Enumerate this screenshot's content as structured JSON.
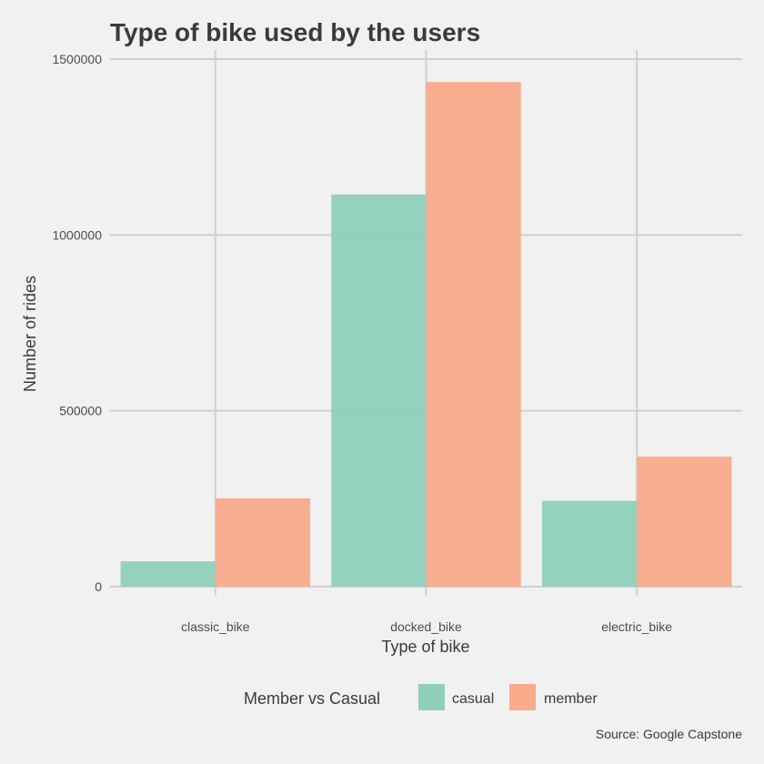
{
  "chart_data": {
    "type": "bar",
    "title": "Type of bike used by the users",
    "xlabel": "Type of bike",
    "ylabel": "Number of rides",
    "categories": [
      "classic_bike",
      "docked_bike",
      "electric_bike"
    ],
    "series": [
      {
        "name": "casual",
        "values": [
          72000,
          1115000,
          244000
        ],
        "color": "#8fd0bb"
      },
      {
        "name": "member",
        "values": [
          251000,
          1435000,
          370000
        ],
        "color": "#f8aa8b"
      }
    ],
    "ylim": [
      0,
      1500000
    ],
    "yticks": [
      0,
      500000,
      1000000,
      1500000
    ],
    "ytick_labels": [
      "0",
      "500000",
      "1000000",
      "1500000"
    ],
    "grid": true,
    "legend": {
      "title": "Member vs Casual",
      "placement": "bottom"
    },
    "caption": "Source: Google Capstone"
  }
}
